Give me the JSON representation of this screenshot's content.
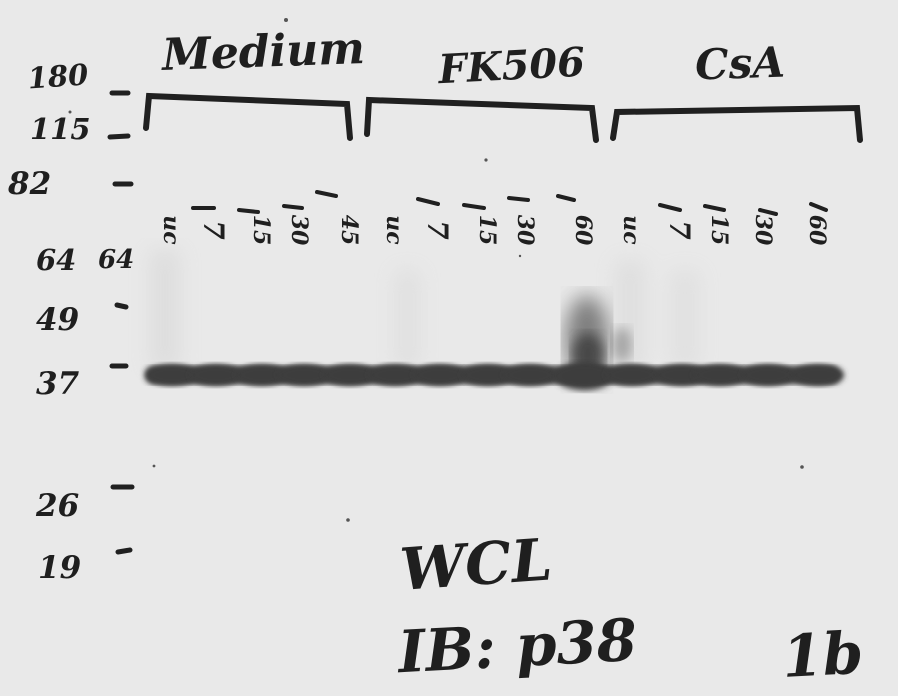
{
  "blot": {
    "group_labels": [
      "Medium",
      "FK506",
      "CsA"
    ],
    "marker_labels": [
      "180",
      "115",
      "82",
      "64",
      "49",
      "37",
      "26",
      "19"
    ],
    "extra_marker_label": "64",
    "lane_labels": [
      [
        "uc",
        "7",
        "15",
        "30",
        "45"
      ],
      [
        "uc",
        "7",
        "15",
        "30",
        "60"
      ],
      [
        "uc",
        "7",
        "15",
        "30",
        "60"
      ]
    ],
    "sample_label": "WCL",
    "antibody_label": "IB: p38",
    "blot_number": "1b",
    "band_kda": 37,
    "band_color": "#3e3e3e",
    "membrane_color": "#ececec",
    "ink_color": "#1f1f1f"
  }
}
